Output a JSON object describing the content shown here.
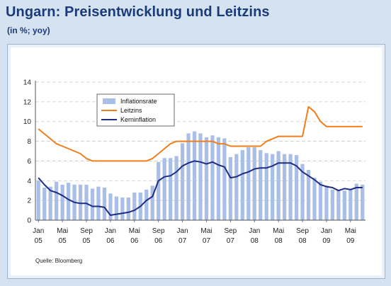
{
  "title": "Ungarn: Preisentwicklung und Leitzins",
  "subtitle": "(in %; yoy)",
  "source": "Quelle: Bloomberg",
  "chart_data": {
    "type": "bar",
    "ylim": [
      0,
      14
    ],
    "yticks": [
      "0",
      "2",
      "4",
      "6",
      "8",
      "10",
      "12",
      "14"
    ],
    "grid": true,
    "legend_position": "top-left",
    "x_tick_labels": [
      {
        "m": "Jan",
        "y": "05",
        "i": 0
      },
      {
        "m": "Mai",
        "y": "05",
        "i": 4
      },
      {
        "m": "Sep",
        "y": "05",
        "i": 8
      },
      {
        "m": "Jan",
        "y": "06",
        "i": 12
      },
      {
        "m": "Mai",
        "y": "06",
        "i": 16
      },
      {
        "m": "Sep",
        "y": "06",
        "i": 20
      },
      {
        "m": "Jan",
        "y": "07",
        "i": 24
      },
      {
        "m": "Mai",
        "y": "07",
        "i": 28
      },
      {
        "m": "Sep",
        "y": "07",
        "i": 32
      },
      {
        "m": "Jan",
        "y": "08",
        "i": 36
      },
      {
        "m": "Mai",
        "y": "08",
        "i": 40
      },
      {
        "m": "Sep",
        "y": "08",
        "i": 44
      },
      {
        "m": "Jan",
        "y": "09",
        "i": 48
      },
      {
        "m": "Mai",
        "y": "09",
        "i": 52
      }
    ],
    "series": [
      {
        "name": "Inflationsrate",
        "kind": "bar",
        "color": "#aabfe8",
        "values": [
          4.0,
          3.3,
          3.4,
          3.9,
          3.6,
          3.8,
          3.6,
          3.6,
          3.6,
          3.2,
          3.4,
          3.3,
          2.7,
          2.4,
          2.3,
          2.3,
          2.8,
          2.8,
          3.1,
          3.5,
          5.9,
          6.3,
          6.3,
          6.5,
          7.8,
          8.8,
          9.0,
          8.8,
          8.4,
          8.6,
          8.4,
          8.3,
          6.4,
          6.7,
          7.1,
          7.4,
          7.4,
          7.1,
          6.8,
          6.7,
          7.0,
          6.7,
          6.7,
          6.6,
          5.7,
          5.1,
          4.3,
          3.9,
          3.5,
          3.1,
          3.1,
          3.0,
          3.2,
          3.7,
          3.6
        ]
      },
      {
        "name": "Leitzins",
        "kind": "line",
        "color": "#f07e1a",
        "values": [
          9.25,
          8.75,
          8.25,
          7.75,
          7.5,
          7.25,
          7.0,
          6.75,
          6.25,
          6.0,
          6.0,
          6.0,
          6.0,
          6.0,
          6.0,
          6.0,
          6.0,
          6.0,
          6.0,
          6.25,
          6.75,
          7.25,
          7.75,
          8.0,
          8.0,
          8.0,
          8.0,
          8.0,
          8.0,
          8.0,
          7.75,
          7.75,
          7.5,
          7.5,
          7.5,
          7.5,
          7.5,
          7.5,
          8.0,
          8.25,
          8.5,
          8.5,
          8.5,
          8.5,
          8.5,
          11.5,
          11.0,
          10.0,
          9.5,
          9.5,
          9.5,
          9.5,
          9.5,
          9.5,
          9.5
        ]
      },
      {
        "name": "Kerninflation",
        "kind": "line",
        "color": "#1f2d80",
        "values": [
          4.3,
          3.6,
          3.0,
          2.8,
          2.5,
          2.1,
          1.8,
          1.7,
          1.7,
          1.4,
          1.4,
          1.3,
          0.5,
          0.6,
          0.7,
          0.8,
          1.0,
          1.4,
          2.0,
          2.4,
          4.0,
          4.4,
          4.5,
          4.9,
          5.5,
          5.8,
          6.0,
          5.9,
          5.7,
          5.9,
          5.6,
          5.4,
          4.3,
          4.4,
          4.7,
          4.9,
          5.2,
          5.3,
          5.3,
          5.5,
          5.8,
          5.8,
          5.8,
          5.5,
          4.9,
          4.5,
          4.1,
          3.6,
          3.4,
          3.3,
          3.0,
          3.2,
          3.1,
          3.3,
          3.3
        ]
      }
    ]
  }
}
